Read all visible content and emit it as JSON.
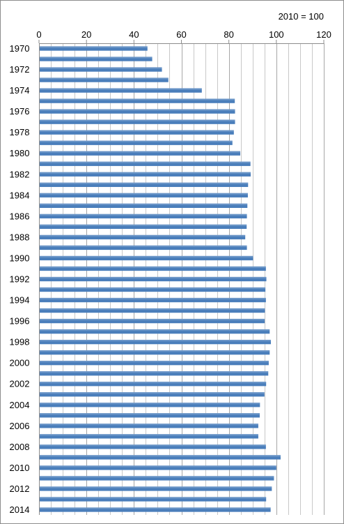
{
  "note": "2010 = 100",
  "chart_data": {
    "type": "bar",
    "orientation": "horizontal",
    "title": "",
    "xlabel": "",
    "ylabel": "",
    "xlim": [
      0,
      120
    ],
    "x_ticks": [
      0,
      20,
      40,
      60,
      80,
      100,
      120
    ],
    "x_tick_labels": [
      "0",
      "20",
      "40",
      "60",
      "80",
      "100",
      "120"
    ],
    "x_axis_position": "top",
    "grid": true,
    "legend": "none",
    "color": "#4a7ebb",
    "categories": [
      "1970",
      "1971",
      "1972",
      "1973",
      "1974",
      "1975",
      "1976",
      "1977",
      "1978",
      "1979",
      "1980",
      "1981",
      "1982",
      "1983",
      "1984",
      "1985",
      "1986",
      "1987",
      "1988",
      "1989",
      "1990",
      "1991",
      "1992",
      "1993",
      "1994",
      "1995",
      "1996",
      "1997",
      "1998",
      "1999",
      "2000",
      "2001",
      "2002",
      "2003",
      "2004",
      "2005",
      "2006",
      "2007",
      "2008",
      "2009",
      "2010",
      "2011",
      "2012",
      "2013",
      "2014"
    ],
    "category_labels_shown": [
      "1970",
      "",
      "1972",
      "",
      "1974",
      "",
      "1976",
      "",
      "1978",
      "",
      "1980",
      "",
      "1982",
      "",
      "1984",
      "",
      "1986",
      "",
      "1988",
      "",
      "1990",
      "",
      "1992",
      "",
      "1994",
      "",
      "1996",
      "",
      "1998",
      "",
      "2000",
      "",
      "2002",
      "",
      "2004",
      "",
      "2006",
      "",
      "2008",
      "",
      "2010",
      "",
      "2012",
      "",
      "2014"
    ],
    "values": [
      45.7,
      47.7,
      51.8,
      54.5,
      68.6,
      82.5,
      82.6,
      82.6,
      82.1,
      81.5,
      84.8,
      89.1,
      89.2,
      88.1,
      88.0,
      87.8,
      87.6,
      87.5,
      86.9,
      87.6,
      90.2,
      95.6,
      95.8,
      95.4,
      95.6,
      95.2,
      95.1,
      97.2,
      97.7,
      97.2,
      96.8,
      96.6,
      95.7,
      95.0,
      93.1,
      93.0,
      92.4,
      92.4,
      95.6,
      101.8,
      100.0,
      99.0,
      98.1,
      95.7,
      97.6
    ]
  }
}
